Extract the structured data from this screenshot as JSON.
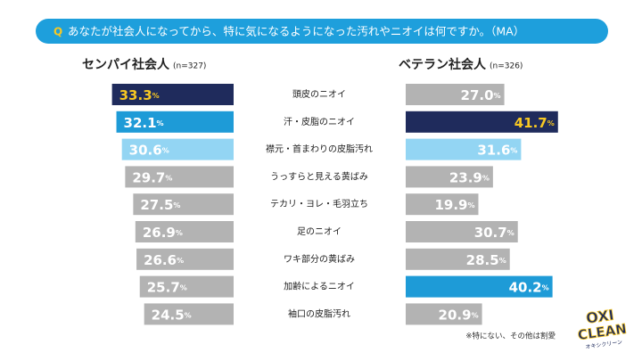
{
  "chart_data": {
    "type": "butterfly",
    "title": "あなたが社会人になってから、特に気になるようになった汚れやニオイは何ですか。（MA）",
    "question_mark": "Q",
    "categories": [
      "頭皮のニオイ",
      "汗・皮脂のニオイ",
      "襟元・首まわりの皮脂汚れ",
      "うっすらと見える黄ばみ",
      "テカリ・ヨレ・毛羽立ち",
      "足のニオイ",
      "ワキ部分の黄ばみ",
      "加齢によるニオイ",
      "袖口の皮脂汚れ"
    ],
    "series": [
      {
        "name": "センパイ社会人",
        "sample": "(n=327)",
        "side": "left",
        "values": [
          33.3,
          32.1,
          30.6,
          29.7,
          27.5,
          26.9,
          26.6,
          25.7,
          24.5
        ],
        "value_labels": [
          "33.3%",
          "32.1%",
          "30.6%",
          "29.7%",
          "27.5%",
          "26.9%",
          "26.6%",
          "25.7%",
          "24.5%"
        ],
        "colors": [
          "#1f2b5c",
          "#1e9bd7",
          "#93d5f3",
          "#b3b3b3",
          "#b3b3b3",
          "#b3b3b3",
          "#b3b3b3",
          "#b3b3b3",
          "#b3b3b3"
        ]
      },
      {
        "name": "ベテラン社会人",
        "sample": "(n=326)",
        "side": "right",
        "values": [
          27.0,
          41.7,
          31.6,
          23.9,
          19.9,
          30.7,
          28.5,
          40.2,
          20.9
        ],
        "value_labels": [
          "27.0%",
          "41.7%",
          "31.6%",
          "23.9%",
          "19.9%",
          "30.7%",
          "28.5%",
          "40.2%",
          "20.9%"
        ],
        "colors": [
          "#b3b3b3",
          "#1f2b5c",
          "#93d5f3",
          "#b3b3b3",
          "#b3b3b3",
          "#b3b3b3",
          "#b3b3b3",
          "#1e9bd7",
          "#b3b3b3"
        ]
      }
    ],
    "xlim": [
      0,
      42
    ],
    "highlight_label_color": "#f7c823",
    "label_color": "#ffffff",
    "footnote": "※特にない、その他は割愛",
    "logo": {
      "line1": "OXI",
      "line2": "CLEAN",
      "line3": "オキシクリーン"
    }
  }
}
